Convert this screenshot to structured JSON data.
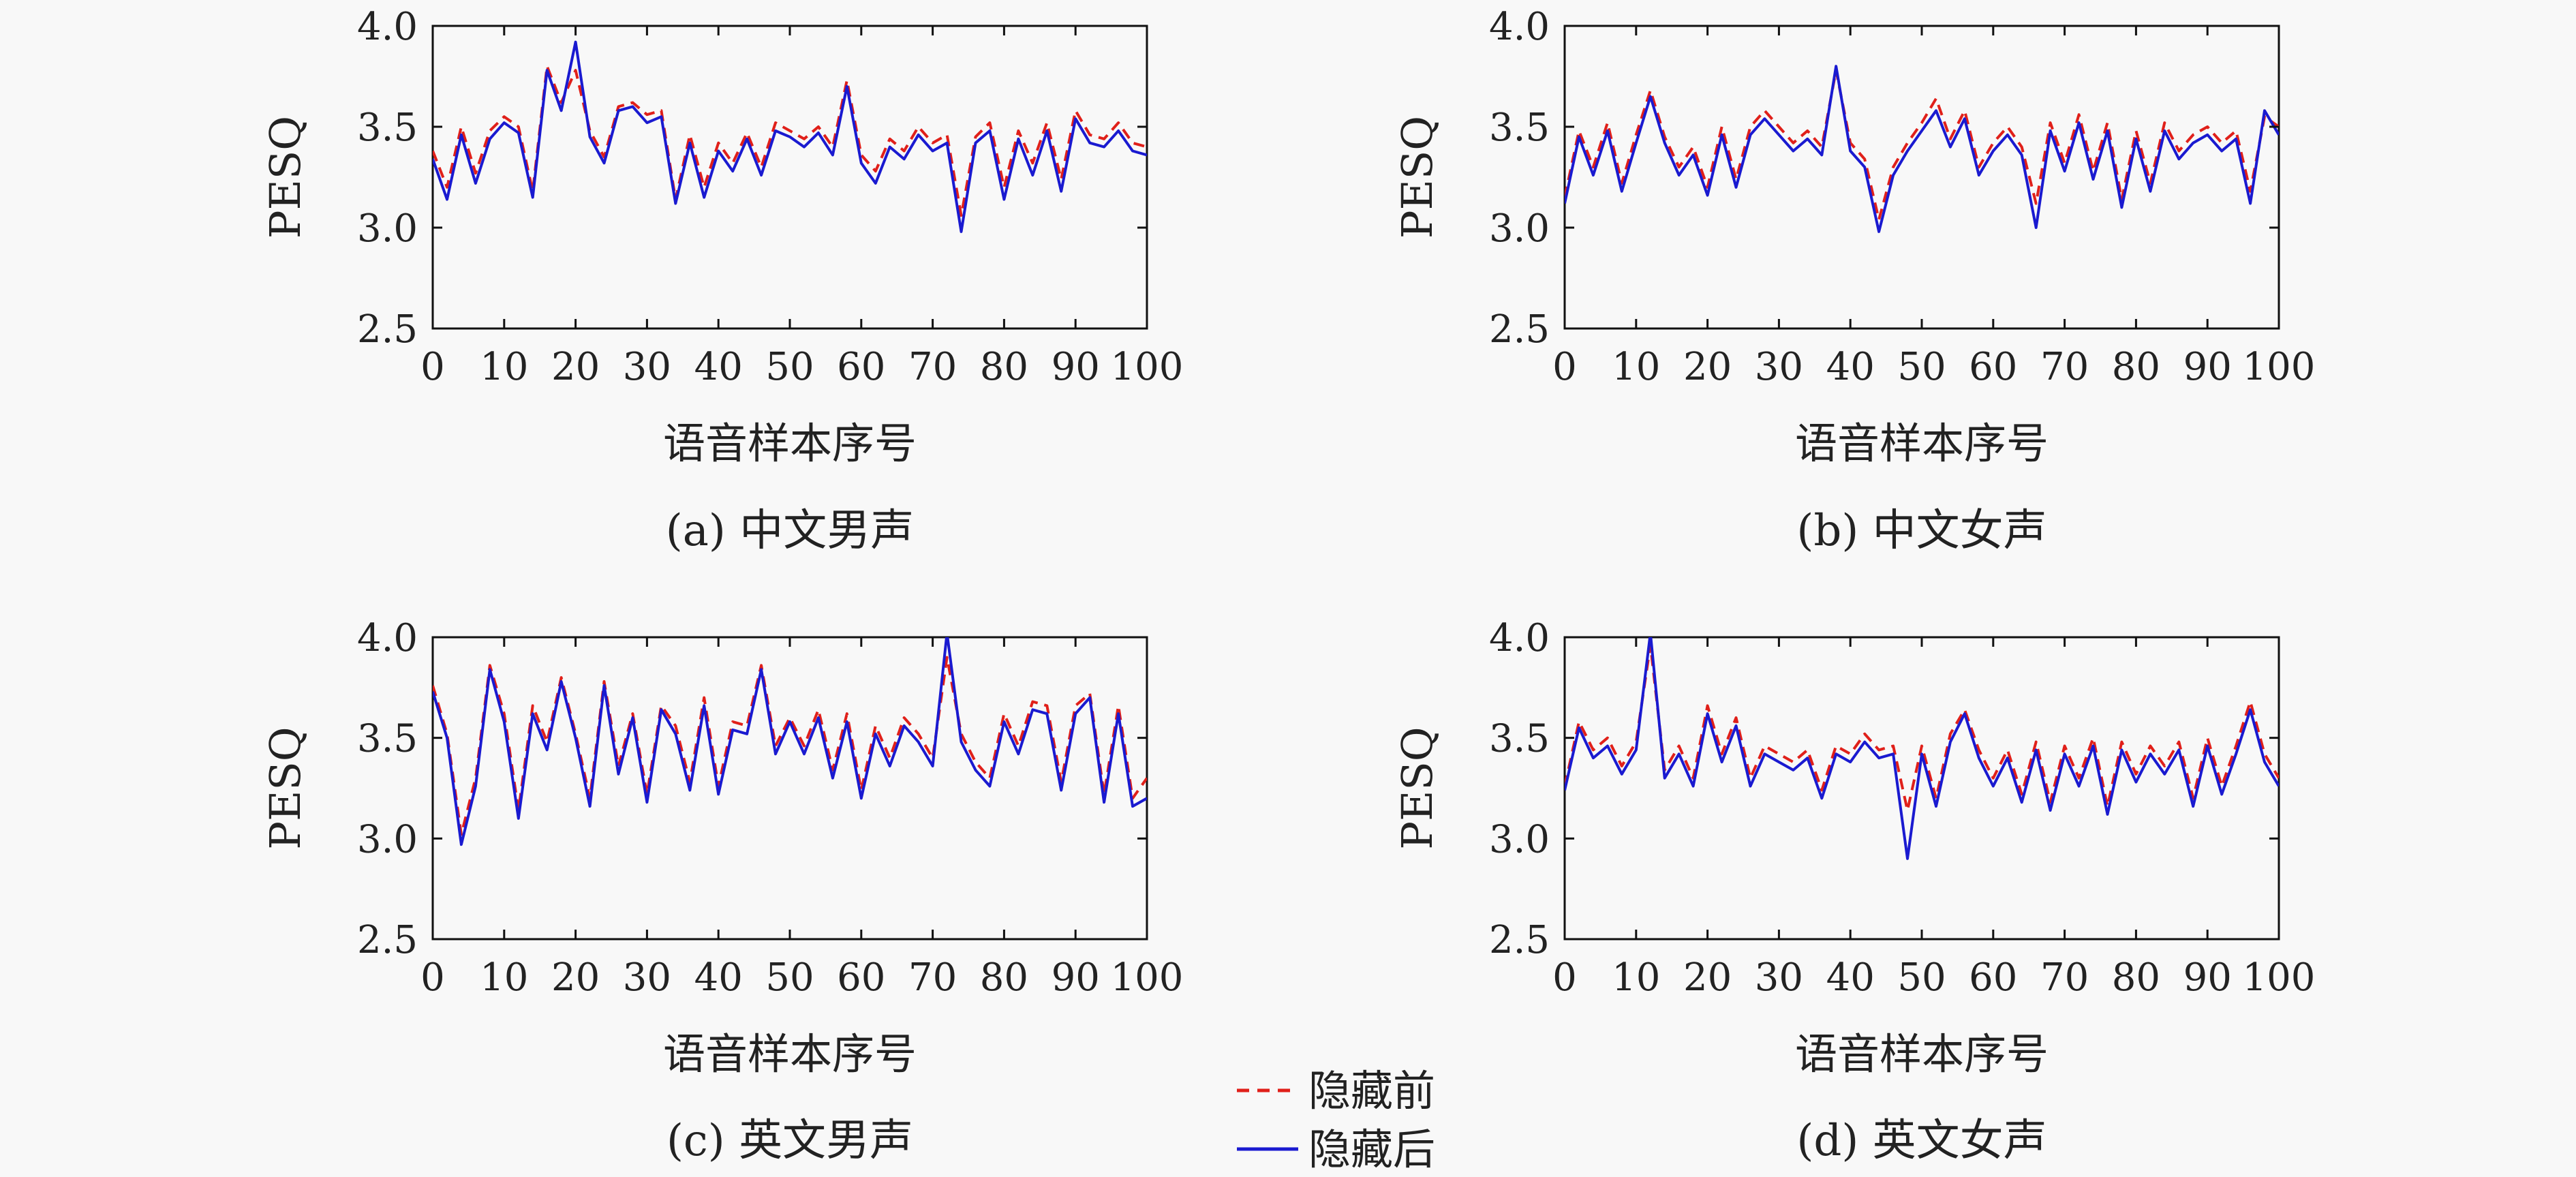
{
  "colors": {
    "before": "#e0201a",
    "after": "#1a1ad0",
    "axis": "#111111",
    "background": "#f8f8f8"
  },
  "legend": {
    "entries": [
      {
        "label": "隐藏前",
        "style": "dashed",
        "color": "#e0201a"
      },
      {
        "label": "隐藏后",
        "style": "solid",
        "color": "#1a1ad0"
      }
    ]
  },
  "chart_data": [
    {
      "type": "line",
      "caption": "(a) 中文男声",
      "xlabel": "语音样本序号",
      "ylabel": "PESQ",
      "xlim": [
        0,
        100
      ],
      "ylim": [
        2.5,
        4.0
      ],
      "xticks": [
        "0",
        "10",
        "20",
        "30",
        "40",
        "50",
        "60",
        "70",
        "80",
        "90",
        "100"
      ],
      "yticks": [
        "2.5",
        "3.0",
        "3.5",
        "4.0"
      ],
      "grid": false,
      "series": [
        {
          "name": "隐藏前",
          "x": [
            0,
            2,
            4,
            6,
            8,
            10,
            12,
            14,
            16,
            18,
            20,
            22,
            24,
            26,
            28,
            30,
            32,
            34,
            36,
            38,
            40,
            42,
            44,
            46,
            48,
            50,
            52,
            54,
            56,
            58,
            60,
            62,
            64,
            66,
            68,
            70,
            72,
            74,
            76,
            78,
            80,
            82,
            84,
            86,
            88,
            90,
            92,
            94,
            96,
            98,
            100
          ],
          "values": [
            3.38,
            3.2,
            3.5,
            3.27,
            3.48,
            3.55,
            3.5,
            3.18,
            3.8,
            3.62,
            3.78,
            3.48,
            3.35,
            3.6,
            3.62,
            3.56,
            3.58,
            3.14,
            3.46,
            3.2,
            3.42,
            3.32,
            3.47,
            3.3,
            3.52,
            3.48,
            3.44,
            3.5,
            3.4,
            3.73,
            3.36,
            3.28,
            3.44,
            3.38,
            3.5,
            3.42,
            3.46,
            3.06,
            3.45,
            3.52,
            3.2,
            3.48,
            3.32,
            3.52,
            3.24,
            3.58,
            3.46,
            3.44,
            3.52,
            3.42,
            3.4
          ]
        },
        {
          "name": "隐藏后",
          "x": [
            0,
            2,
            4,
            6,
            8,
            10,
            12,
            14,
            16,
            18,
            20,
            22,
            24,
            26,
            28,
            30,
            32,
            34,
            36,
            38,
            40,
            42,
            44,
            46,
            48,
            50,
            52,
            54,
            56,
            58,
            60,
            62,
            64,
            66,
            68,
            70,
            72,
            74,
            76,
            78,
            80,
            82,
            84,
            86,
            88,
            90,
            92,
            94,
            96,
            98,
            100
          ],
          "values": [
            3.34,
            3.14,
            3.46,
            3.22,
            3.44,
            3.52,
            3.47,
            3.15,
            3.78,
            3.58,
            3.92,
            3.45,
            3.32,
            3.58,
            3.6,
            3.52,
            3.55,
            3.12,
            3.42,
            3.15,
            3.38,
            3.28,
            3.44,
            3.26,
            3.48,
            3.45,
            3.4,
            3.47,
            3.36,
            3.7,
            3.32,
            3.22,
            3.4,
            3.34,
            3.46,
            3.38,
            3.42,
            2.98,
            3.42,
            3.48,
            3.14,
            3.44,
            3.26,
            3.48,
            3.18,
            3.54,
            3.42,
            3.4,
            3.48,
            3.38,
            3.36
          ]
        }
      ]
    },
    {
      "type": "line",
      "caption": "(b) 中文女声",
      "xlabel": "语音样本序号",
      "ylabel": "PESQ",
      "xlim": [
        0,
        100
      ],
      "ylim": [
        2.5,
        4.0
      ],
      "xticks": [
        "0",
        "10",
        "20",
        "30",
        "40",
        "50",
        "60",
        "70",
        "80",
        "90",
        "100"
      ],
      "yticks": [
        "2.5",
        "3.0",
        "3.5",
        "4.0"
      ],
      "grid": false,
      "series": [
        {
          "name": "隐藏前",
          "x": [
            0,
            2,
            4,
            6,
            8,
            10,
            12,
            14,
            16,
            18,
            20,
            22,
            24,
            26,
            28,
            30,
            32,
            34,
            36,
            38,
            40,
            42,
            44,
            46,
            48,
            50,
            52,
            54,
            56,
            58,
            60,
            62,
            64,
            66,
            68,
            70,
            72,
            74,
            76,
            78,
            80,
            82,
            84,
            86,
            88,
            90,
            92,
            94,
            96,
            98,
            100
          ],
          "values": [
            3.15,
            3.48,
            3.3,
            3.52,
            3.22,
            3.46,
            3.68,
            3.45,
            3.3,
            3.4,
            3.2,
            3.5,
            3.24,
            3.5,
            3.58,
            3.5,
            3.42,
            3.48,
            3.4,
            3.78,
            3.42,
            3.34,
            3.04,
            3.3,
            3.42,
            3.52,
            3.64,
            3.44,
            3.58,
            3.3,
            3.42,
            3.5,
            3.4,
            3.12,
            3.52,
            3.32,
            3.56,
            3.28,
            3.52,
            3.14,
            3.48,
            3.22,
            3.52,
            3.38,
            3.46,
            3.5,
            3.42,
            3.48,
            3.18,
            3.55,
            3.5
          ]
        },
        {
          "name": "隐藏后",
          "x": [
            0,
            2,
            4,
            6,
            8,
            10,
            12,
            14,
            16,
            18,
            20,
            22,
            24,
            26,
            28,
            30,
            32,
            34,
            36,
            38,
            40,
            42,
            44,
            46,
            48,
            50,
            52,
            54,
            56,
            58,
            60,
            62,
            64,
            66,
            68,
            70,
            72,
            74,
            76,
            78,
            80,
            82,
            84,
            86,
            88,
            90,
            92,
            94,
            96,
            98,
            100
          ],
          "values": [
            3.12,
            3.45,
            3.26,
            3.48,
            3.18,
            3.42,
            3.65,
            3.42,
            3.26,
            3.36,
            3.16,
            3.46,
            3.2,
            3.46,
            3.54,
            3.46,
            3.38,
            3.44,
            3.36,
            3.8,
            3.38,
            3.3,
            2.98,
            3.26,
            3.38,
            3.48,
            3.58,
            3.4,
            3.54,
            3.26,
            3.38,
            3.46,
            3.36,
            3.0,
            3.48,
            3.28,
            3.52,
            3.24,
            3.48,
            3.1,
            3.44,
            3.18,
            3.48,
            3.34,
            3.42,
            3.46,
            3.38,
            3.44,
            3.12,
            3.58,
            3.46
          ]
        }
      ]
    },
    {
      "type": "line",
      "caption": "(c) 英文男声",
      "xlabel": "语音样本序号",
      "ylabel": "PESQ",
      "xlim": [
        0,
        100
      ],
      "ylim": [
        2.5,
        4.0
      ],
      "xticks": [
        "0",
        "10",
        "20",
        "30",
        "40",
        "50",
        "60",
        "70",
        "80",
        "90",
        "100"
      ],
      "yticks": [
        "2.5",
        "3.0",
        "3.5",
        "4.0"
      ],
      "grid": false,
      "series": [
        {
          "name": "隐藏前",
          "x": [
            0,
            2,
            4,
            6,
            8,
            10,
            12,
            14,
            16,
            18,
            20,
            22,
            24,
            26,
            28,
            30,
            32,
            34,
            36,
            38,
            40,
            42,
            44,
            46,
            48,
            50,
            52,
            54,
            56,
            58,
            60,
            62,
            64,
            66,
            68,
            70,
            72,
            74,
            76,
            78,
            80,
            82,
            84,
            86,
            88,
            90,
            92,
            94,
            96,
            98,
            100
          ],
          "values": [
            3.76,
            3.52,
            3.02,
            3.3,
            3.86,
            3.62,
            3.14,
            3.66,
            3.48,
            3.8,
            3.52,
            3.2,
            3.78,
            3.36,
            3.62,
            3.22,
            3.66,
            3.56,
            3.28,
            3.7,
            3.26,
            3.58,
            3.56,
            3.86,
            3.46,
            3.6,
            3.46,
            3.64,
            3.34,
            3.62,
            3.24,
            3.56,
            3.4,
            3.6,
            3.52,
            3.4,
            3.9,
            3.52,
            3.38,
            3.3,
            3.62,
            3.46,
            3.68,
            3.66,
            3.28,
            3.66,
            3.72,
            3.22,
            3.66,
            3.2,
            3.3
          ]
        },
        {
          "name": "隐藏后",
          "x": [
            0,
            2,
            4,
            6,
            8,
            10,
            12,
            14,
            16,
            18,
            20,
            22,
            24,
            26,
            28,
            30,
            32,
            34,
            36,
            38,
            40,
            42,
            44,
            46,
            48,
            50,
            52,
            54,
            56,
            58,
            60,
            62,
            64,
            66,
            68,
            70,
            72,
            74,
            76,
            78,
            80,
            82,
            84,
            86,
            88,
            90,
            92,
            94,
            96,
            98,
            100
          ],
          "values": [
            3.73,
            3.5,
            2.97,
            3.26,
            3.84,
            3.58,
            3.1,
            3.62,
            3.44,
            3.78,
            3.5,
            3.16,
            3.76,
            3.32,
            3.6,
            3.18,
            3.64,
            3.52,
            3.24,
            3.66,
            3.22,
            3.54,
            3.52,
            3.84,
            3.42,
            3.58,
            3.42,
            3.6,
            3.3,
            3.58,
            3.2,
            3.52,
            3.36,
            3.56,
            3.48,
            3.36,
            4.02,
            3.48,
            3.34,
            3.26,
            3.58,
            3.42,
            3.64,
            3.62,
            3.24,
            3.62,
            3.7,
            3.18,
            3.62,
            3.16,
            3.2
          ]
        }
      ]
    },
    {
      "type": "line",
      "caption": "(d) 英文女声",
      "xlabel": "语音样本序号",
      "ylabel": "PESQ",
      "xlim": [
        0,
        100
      ],
      "ylim": [
        2.5,
        4.0
      ],
      "xticks": [
        "0",
        "10",
        "20",
        "30",
        "40",
        "50",
        "60",
        "70",
        "80",
        "90",
        "100"
      ],
      "yticks": [
        "2.5",
        "3.0",
        "3.5",
        "4.0"
      ],
      "grid": false,
      "series": [
        {
          "name": "隐藏前",
          "x": [
            0,
            2,
            4,
            6,
            8,
            10,
            12,
            14,
            16,
            18,
            20,
            22,
            24,
            26,
            28,
            30,
            32,
            34,
            36,
            38,
            40,
            42,
            44,
            46,
            48,
            50,
            52,
            54,
            56,
            58,
            60,
            62,
            64,
            66,
            68,
            70,
            72,
            74,
            76,
            78,
            80,
            82,
            84,
            86,
            88,
            90,
            92,
            94,
            96,
            98,
            100
          ],
          "values": [
            3.26,
            3.58,
            3.44,
            3.5,
            3.36,
            3.48,
            3.96,
            3.34,
            3.46,
            3.3,
            3.66,
            3.42,
            3.6,
            3.3,
            3.46,
            3.42,
            3.38,
            3.44,
            3.24,
            3.46,
            3.42,
            3.52,
            3.44,
            3.46,
            3.14,
            3.46,
            3.2,
            3.52,
            3.64,
            3.44,
            3.3,
            3.44,
            3.22,
            3.48,
            3.18,
            3.46,
            3.3,
            3.5,
            3.16,
            3.48,
            3.32,
            3.46,
            3.36,
            3.48,
            3.2,
            3.5,
            3.26,
            3.46,
            3.68,
            3.42,
            3.3
          ]
        },
        {
          "name": "隐藏后",
          "x": [
            0,
            2,
            4,
            6,
            8,
            10,
            12,
            14,
            16,
            18,
            20,
            22,
            24,
            26,
            28,
            30,
            32,
            34,
            36,
            38,
            40,
            42,
            44,
            46,
            48,
            50,
            52,
            54,
            56,
            58,
            60,
            62,
            64,
            66,
            68,
            70,
            72,
            74,
            76,
            78,
            80,
            82,
            84,
            86,
            88,
            90,
            92,
            94,
            96,
            98,
            100
          ],
          "values": [
            3.24,
            3.55,
            3.4,
            3.46,
            3.32,
            3.44,
            4.02,
            3.3,
            3.42,
            3.26,
            3.62,
            3.38,
            3.56,
            3.26,
            3.42,
            3.38,
            3.34,
            3.4,
            3.2,
            3.42,
            3.38,
            3.48,
            3.4,
            3.42,
            2.9,
            3.42,
            3.16,
            3.48,
            3.62,
            3.4,
            3.26,
            3.4,
            3.18,
            3.44,
            3.14,
            3.42,
            3.26,
            3.46,
            3.12,
            3.44,
            3.28,
            3.42,
            3.32,
            3.44,
            3.16,
            3.46,
            3.22,
            3.42,
            3.64,
            3.38,
            3.26
          ]
        }
      ]
    }
  ]
}
